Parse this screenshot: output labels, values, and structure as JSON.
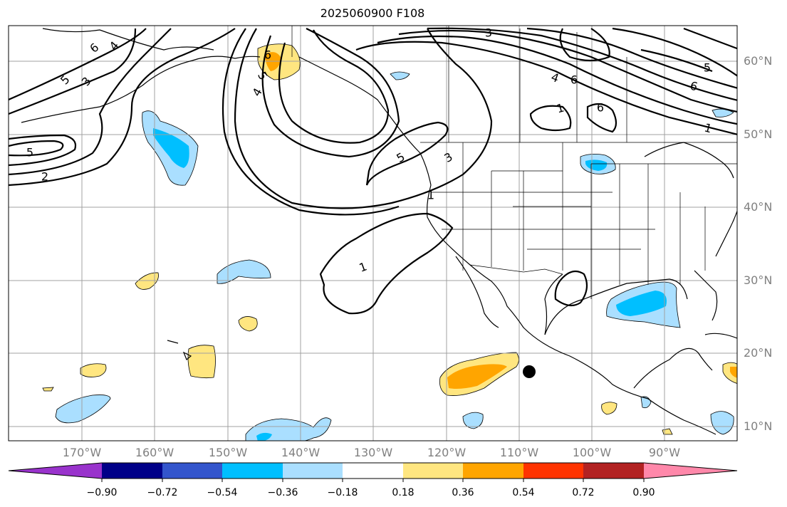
{
  "title": "2025060900 F108",
  "lat_labels": [
    "60°N",
    "50°N",
    "40°N",
    "30°N",
    "20°N",
    "10°N"
  ],
  "lon_labels": [
    "170°W",
    "160°W",
    "150°W",
    "140°W",
    "130°W",
    "120°W",
    "110°W",
    "100°W",
    "90°W"
  ],
  "contour_labels": [
    "6",
    "5",
    "3",
    "4",
    "5",
    "2",
    "6",
    "5",
    "4",
    "3",
    "4",
    "6",
    "6",
    "5",
    "1",
    "6",
    "5",
    "3",
    "1",
    "1",
    "1"
  ],
  "colorbar": {
    "ticks": [
      "−0.90",
      "−0.72",
      "−0.54",
      "−0.36",
      "−0.18",
      "0.18",
      "0.36",
      "0.54",
      "0.72",
      "0.90"
    ],
    "colors": {
      "under": "#9933cc",
      "b1": "#000088",
      "b2": "#3355cc",
      "b3": "#00bfff",
      "b4": "#aadfff",
      "mid": "#ffffff",
      "b6": "#ffe680",
      "b7": "#ffa500",
      "b8": "#ff3300",
      "b9": "#b22222",
      "over": "#ff88aa"
    }
  },
  "map_style": {
    "grid": true,
    "grid_color": "#a0a0a0",
    "contour_color": "#000000",
    "marker": "black-dot"
  }
}
